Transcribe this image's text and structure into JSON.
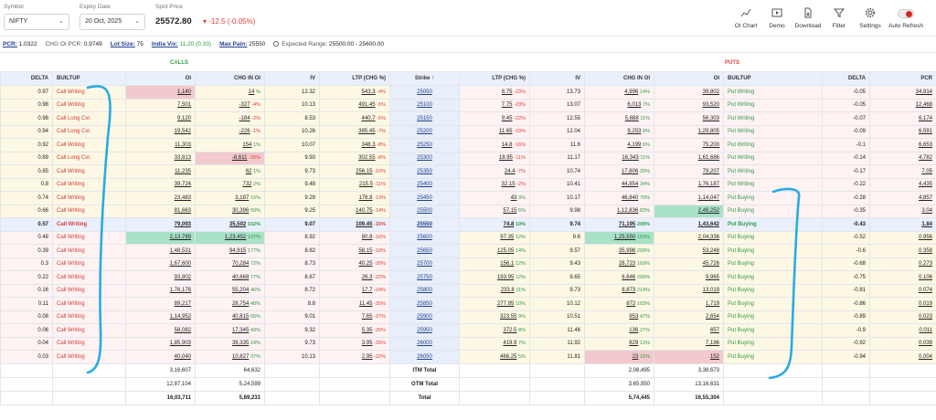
{
  "header": {
    "symbol_label": "Symbol",
    "symbol_value": "NIFTY",
    "expiry_label": "Expiry Date",
    "expiry_value": "20 Oct, 2025",
    "spot_label": "Spot Price",
    "spot_value": "25572.80",
    "spot_change": "-12.5 (-0.05%)",
    "tools": [
      {
        "label": "OI Chart",
        "icon": "line-chart-icon"
      },
      {
        "label": "Demo",
        "icon": "play-icon"
      },
      {
        "label": "Download",
        "icon": "download-icon"
      },
      {
        "label": "Filter",
        "icon": "filter-icon"
      },
      {
        "label": "Settings",
        "icon": "gear-icon"
      },
      {
        "label": "Auto Refresh",
        "icon": "toggle-icon"
      }
    ]
  },
  "stats": {
    "pcr_label": "PCR:",
    "pcr_value": "1.0322",
    "chg_oi_pcr_label": "CHG OI PCR:",
    "chg_oi_pcr_value": "0.9749",
    "lot_size_label": "Lot Size:",
    "lot_size_value": "75",
    "india_vix_label": "India Vix:",
    "india_vix_value": "11.20 (0.33)",
    "max_pain_label": "Max Pain:",
    "max_pain_value": "25550",
    "expected_range_label": "Expected Range:",
    "expected_range_value": "25500.00 - 25600.00"
  },
  "sections": {
    "calls": "CALLS",
    "puts": "PUTS"
  },
  "columns": [
    "DELTA",
    "BUILTUP",
    "OI",
    "CHG IN OI",
    "IV",
    "LTP (CHG %)",
    "Strike ↑",
    "LTP (CHG %)",
    "IV",
    "CHG IN OI",
    "OI",
    "BUILTUP",
    "DELTA",
    "PCR"
  ],
  "colors": {
    "call_builtup": "#d63a3a",
    "put_builtup": "#2e9b47",
    "itm_bg": "#fdf8e3",
    "otm_bg": "#fef2f2",
    "strike_bg": "#e8eefa",
    "annotation": "#29abe2"
  },
  "rows": [
    {
      "cd": "0.97",
      "cb": "Call Writing",
      "coi": "1,140",
      "ccoi": "14",
      "ccoip": "%",
      "civ": "12.32",
      "cltp": "543.3",
      "cltpp": "-4%",
      "strike": "25050",
      "pltp": "8.75",
      "pltpp": "-23%",
      "piv": "13.73",
      "pcoi": "4,996",
      "pcoip": "14%",
      "poi": "39,802",
      "pb": "Put Writing",
      "pd": "-0.05",
      "pcr": "34,914"
    },
    {
      "cd": "0.98",
      "cb": "Call Writing",
      "coi": "7,501",
      "ccoi": "-327",
      "ccoip": "-4%",
      "civ": "10.13",
      "cltp": "491.45",
      "cltpp": "-5%",
      "strike": "25100",
      "pltp": "7.75",
      "pltpp": "-23%",
      "piv": "13.07",
      "pcoi": "6,013",
      "pcoip": "7%",
      "poi": "93,520",
      "pb": "Put Writing",
      "pd": "-0.05",
      "pcr": "12,468"
    },
    {
      "cd": "0.98",
      "cb": "Call Long Cvr.",
      "coi": "9,120",
      "ccoi": "-184",
      "ccoip": "-2%",
      "civ": "8.53",
      "cltp": "440.7",
      "cltpp": "-5%",
      "strike": "25150",
      "pltp": "9.45",
      "pltpp": "-22%",
      "piv": "12.55",
      "pcoi": "5,688",
      "pcoip": "11%",
      "poi": "56,303",
      "pb": "Put Writing",
      "pd": "-0.07",
      "pcr": "6,174"
    },
    {
      "cd": "0.94",
      "cb": "Call Long Cvr.",
      "coi": "19,542",
      "ccoi": "-226",
      "ccoip": "-1%",
      "civ": "10.26",
      "cltp": "395.45",
      "cltpp": "-7%",
      "strike": "25200",
      "pltp": "11.65",
      "pltpp": "-19%",
      "piv": "12.04",
      "pcoi": "9,253",
      "pcoip": "8%",
      "poi": "1,29,805",
      "pb": "Put Writing",
      "pd": "-0.09",
      "pcr": "6,591"
    },
    {
      "cd": "0.92",
      "cb": "Call Writing",
      "coi": "11,303",
      "ccoi": "154",
      "ccoip": "1%",
      "civ": "10.07",
      "cltp": "348.3",
      "cltpp": "-8%",
      "strike": "25250",
      "pltp": "14.8",
      "pltpp": "-16%",
      "piv": "11.6",
      "pcoi": "4,199",
      "pcoip": "6%",
      "poi": "75,200",
      "pb": "Put Writing",
      "pd": "-0.1",
      "pcr": "6,653"
    },
    {
      "cd": "0.89",
      "cb": "Call Long Cvr.",
      "coi": "33,813",
      "ccoi": "-8,611",
      "ccoip": "-20%",
      "civ": "9.93",
      "cltp": "302.55",
      "cltpp": "-8%",
      "strike": "25300",
      "pltp": "18.95",
      "pltpp": "-11%",
      "piv": "11.17",
      "pcoi": "16,343",
      "pcoip": "11%",
      "poi": "1,61,686",
      "pb": "Put Writing",
      "pd": "-0.14",
      "pcr": "4,782"
    },
    {
      "cd": "0.85",
      "cb": "Call Writing",
      "coi": "11,235",
      "ccoi": "62",
      "ccoip": "1%",
      "civ": "9.73",
      "cltp": "256.15",
      "cltpp": "-10%",
      "strike": "25350",
      "pltp": "24.4",
      "pltpp": "-7%",
      "piv": "10.74",
      "pcoi": "17,806",
      "pcoip": "29%",
      "poi": "79,207",
      "pb": "Put Writing",
      "pd": "-0.17",
      "pcr": "7.05"
    },
    {
      "cd": "0.8",
      "cb": "Call Writing",
      "coi": "39,724",
      "ccoi": "732",
      "ccoip": "2%",
      "civ": "9.48",
      "cltp": "215.5",
      "cltpp": "-11%",
      "strike": "25400",
      "pltp": "32.15",
      "pltpp": "-2%",
      "piv": "10.41",
      "pcoi": "44,854",
      "pcoip": "34%",
      "poi": "1,76,187",
      "pb": "Put Writing",
      "pd": "-0.22",
      "pcr": "4,435"
    },
    {
      "cd": "0.74",
      "cb": "Call Writing",
      "coi": "23,483",
      "ccoi": "3,187",
      "ccoip": "15%",
      "civ": "9.29",
      "cltp": "176.8",
      "cltpp": "-13%",
      "strike": "25450",
      "pltp": "43",
      "pltpp": "3%",
      "piv": "10.17",
      "pcoi": "46,840",
      "pcoip": "70%",
      "poi": "1,14,047",
      "pb": "Put Buying",
      "pd": "-0.28",
      "pcr": "4,857"
    },
    {
      "cd": "0.66",
      "cb": "Call Writing",
      "coi": "81,663",
      "ccoi": "30,396",
      "ccoip": "59%",
      "civ": "9.25",
      "cltp": "140.75",
      "cltpp": "-14%",
      "strike": "25500",
      "pltp": "57.15",
      "pltpp": "6%",
      "piv": "9.98",
      "pcoi": "1,12,836",
      "pcoip": "83%",
      "poi": "2,48,252",
      "pb": "Put Buying",
      "pd": "-0.35",
      "pcr": "3.04"
    },
    {
      "cd": "0.57",
      "cb": "Call Writing",
      "coi": "79,093",
      "ccoi": "35,502",
      "ccoip": "102%",
      "civ": "9.07",
      "cltp": "109.45",
      "cltpp": "-15%",
      "strike": "25550",
      "pltp": "74.8",
      "pltpp": "10%",
      "piv": "9.74",
      "pcoi": "71,195",
      "pcoip": "209%",
      "poi": "1,43,642",
      "pb": "Put Buying",
      "pd": "-0.43",
      "pcr": "1.84"
    },
    {
      "cd": "0.48",
      "cb": "Call Writing",
      "coi": "2,13,789",
      "ccoi": "1,23,452",
      "ccoip": "137%",
      "civ": "8.92",
      "cltp": "80.8",
      "cltpp": "-16%",
      "strike": "25600",
      "pltp": "97.35",
      "pltpp": "12%",
      "piv": "9.6",
      "pcoi": "1,25,550",
      "pcoip": "159%",
      "poi": "2,04,336",
      "pb": "Put Buying",
      "pd": "-0.52",
      "pcr": "0.956"
    },
    {
      "cd": "0.39",
      "cb": "Call Writing",
      "coi": "1,48,531",
      "ccoi": "94,915",
      "ccoip": "177%",
      "civ": "8.82",
      "cltp": "58.15",
      "cltpp": "-18%",
      "strike": "25650",
      "pltp": "125.05",
      "pltpp": "14%",
      "piv": "9.57",
      "pcoi": "35,998",
      "pcoip": "209%",
      "poi": "53,248",
      "pb": "Put Buying",
      "pd": "-0.6",
      "pcr": "0.358"
    },
    {
      "cd": "0.3",
      "cb": "Call Writing",
      "coi": "1,67,600",
      "ccoi": "70,284",
      "ccoip": "72%",
      "civ": "8.73",
      "cltp": "40.25",
      "cltpp": "-20%",
      "strike": "25700",
      "pltp": "156.1",
      "pltpp": "12%",
      "piv": "9.43",
      "pcoi": "28,723",
      "pcoip": "169%",
      "poi": "45,726",
      "pb": "Put Buying",
      "pd": "-0.68",
      "pcr": "0.273"
    },
    {
      "cd": "0.22",
      "cb": "Call Writing",
      "coi": "93,802",
      "ccoi": "40,668",
      "ccoip": "77%",
      "civ": "8.67",
      "cltp": "26.3",
      "cltpp": "-22%",
      "strike": "25750",
      "pltp": "193.95",
      "pltpp": "12%",
      "piv": "9.65",
      "pcoi": "6,646",
      "pcoip": "200%",
      "poi": "9,965",
      "pb": "Put Buying",
      "pd": "-0.75",
      "pcr": "0.106"
    },
    {
      "cd": "0.16",
      "cb": "Call Writing",
      "coi": "1,76,178",
      "ccoi": "55,204",
      "ccoip": "46%",
      "civ": "8.72",
      "cltp": "17.7",
      "cltpp": "-24%",
      "strike": "25800",
      "pltp": "233.8",
      "pltpp": "11%",
      "piv": "9.73",
      "pcoi": "8,873",
      "pcoip": "214%",
      "poi": "13,019",
      "pb": "Put Buying",
      "pd": "-0.81",
      "pcr": "0.074"
    },
    {
      "cd": "0.11",
      "cb": "Call Writing",
      "coi": "89,217",
      "ccoi": "28,754",
      "ccoip": "48%",
      "civ": "8.8",
      "cltp": "11.45",
      "cltpp": "-25%",
      "strike": "25850",
      "pltp": "277.95",
      "pltpp": "10%",
      "piv": "10.12",
      "pcoi": "872",
      "pcoip": "103%",
      "poi": "1,719",
      "pb": "Put Buying",
      "pd": "-0.86",
      "pcr": "0.019"
    },
    {
      "cd": "0.08",
      "cb": "Call Writing",
      "coi": "1,14,952",
      "ccoi": "40,815",
      "ccoip": "55%",
      "civ": "9.01",
      "cltp": "7.65",
      "cltpp": "-27%",
      "strike": "25900",
      "pltp": "323.55",
      "pltpp": "9%",
      "piv": "10.51",
      "pcoi": "953",
      "pcoip": "47%",
      "poi": "2,654",
      "pb": "Put Buying",
      "pd": "-0.89",
      "pcr": "0.023"
    },
    {
      "cd": "0.06",
      "cb": "Call Writing",
      "coi": "58,082",
      "ccoi": "17,345",
      "ccoip": "43%",
      "civ": "9.32",
      "cltp": "5.35",
      "cltpp": "-26%",
      "strike": "25950",
      "pltp": "372.5",
      "pltpp": "8%",
      "piv": "11.46",
      "pcoi": "136",
      "pcoip": "27%",
      "poi": "657",
      "pb": "Put Buying",
      "pd": "-0.9",
      "pcr": "0.011"
    },
    {
      "cd": "0.04",
      "cb": "Call Writing",
      "coi": "1,85,903",
      "ccoi": "39,335",
      "ccoip": "24%",
      "civ": "9.73",
      "cltp": "3.95",
      "cltpp": "-26%",
      "strike": "26000",
      "pltp": "419.9",
      "pltpp": "7%",
      "piv": "11.92",
      "pcoi": "829",
      "pcoip": "13%",
      "poi": "7,196",
      "pb": "Put Buying",
      "pd": "-0.92",
      "pcr": "0.039"
    },
    {
      "cd": "0.03",
      "cb": "Call Writing",
      "coi": "40,040",
      "ccoi": "10,827",
      "ccoip": "37%",
      "civ": "10.13",
      "cltp": "2.95",
      "cltpp": "-22%",
      "strike": "26050",
      "pltp": "466.25",
      "pltpp": "5%",
      "piv": "11.81",
      "pcoi": "23",
      "pcoip": "16%",
      "poi": "152",
      "pb": "Put Buying",
      "pd": "-0.94",
      "pcr": "0.004"
    }
  ],
  "totals": {
    "itm": {
      "label": "ITM Total",
      "call_oi": "3,16,607",
      "call_chg": "64,632",
      "put_chg": "2,08,495",
      "put_oi": "3,38,673"
    },
    "otm": {
      "label": "OTM Total",
      "call_oi": "12,87,104",
      "call_chg": "5,24,599",
      "put_chg": "3,65,950",
      "put_oi": "13,16,631"
    },
    "all": {
      "label": "Total",
      "call_oi": "16,03,711",
      "call_chg": "5,89,231",
      "put_chg": "5,74,445",
      "put_oi": "16,55,304"
    }
  }
}
